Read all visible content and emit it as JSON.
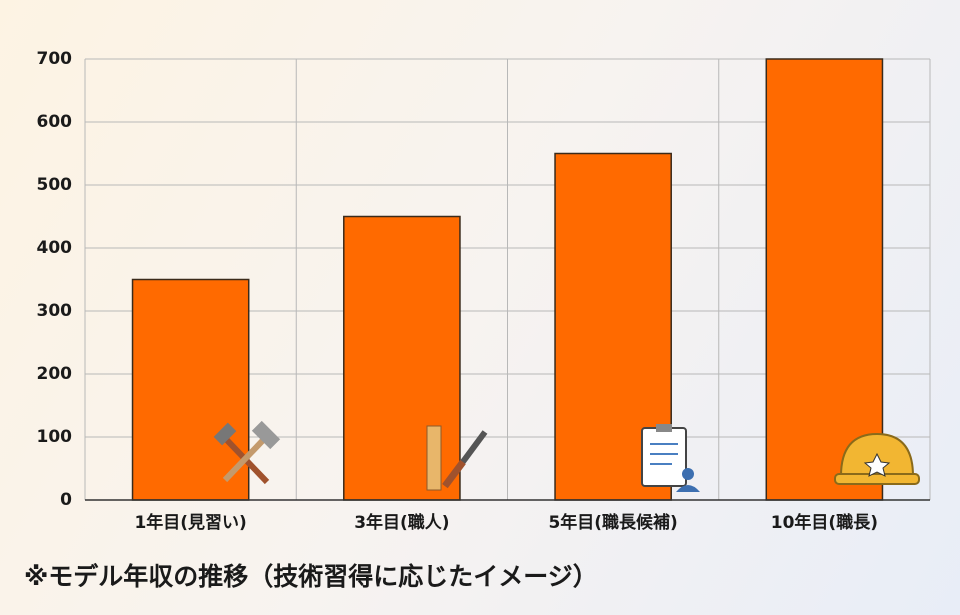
{
  "chart_data": {
    "type": "bar",
    "categories": [
      "1年目(見習い)",
      "3年目(職人)",
      "5年目(職長候補)",
      "10年目(職長)"
    ],
    "values": [
      350,
      450,
      550,
      700
    ],
    "color": "#ff6a00",
    "ylim": [
      0,
      700
    ],
    "yticks": [
      0,
      100,
      200,
      300,
      400,
      500,
      600,
      700
    ],
    "grid": true,
    "caption": "※モデル年収の推移（技術習得に応じたイメージ）"
  }
}
